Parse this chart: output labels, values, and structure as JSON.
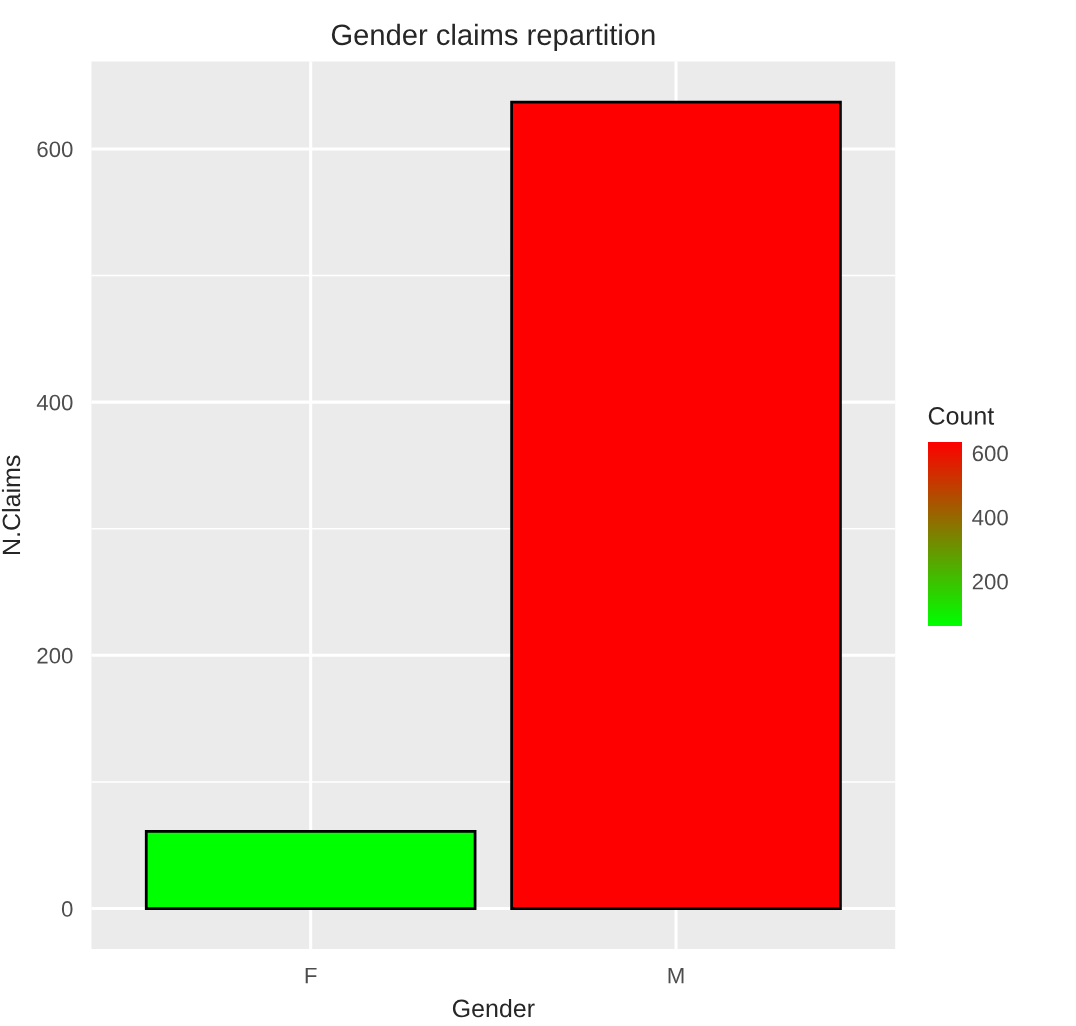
{
  "chart_data": {
    "type": "bar",
    "title": "Gender claims repartition",
    "xlabel": "Gender",
    "ylabel": "N.Claims",
    "categories": [
      "F",
      "M"
    ],
    "values": [
      61,
      637
    ],
    "colors": [
      "#00ff00",
      "#ff0000"
    ],
    "ylim": [
      -32,
      669
    ],
    "yticks": [
      0,
      200,
      400,
      600
    ],
    "clabel": "Count",
    "clim": [
      61,
      637
    ],
    "cticks": [
      200,
      400,
      600
    ],
    "grid": true
  }
}
